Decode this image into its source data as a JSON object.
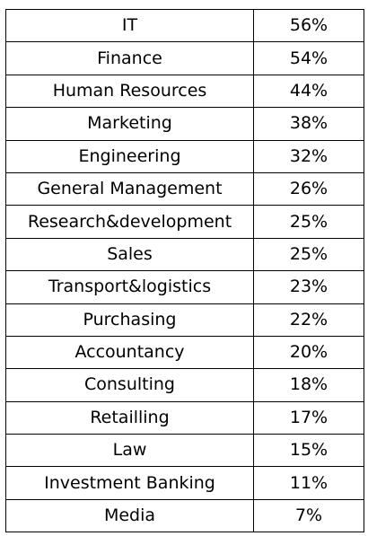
{
  "chart_data": {
    "type": "table",
    "title": "",
    "columns": [
      "",
      ""
    ],
    "categories": [
      "IT",
      "Finance",
      "Human Resources",
      "Marketing",
      "Engineering",
      "General Management",
      "Research&development",
      "Sales",
      "Transport&logistics",
      "Purchasing",
      "Accountancy",
      "Consulting",
      "Retailling",
      "Law",
      "Investment Banking",
      "Media"
    ],
    "values": [
      56,
      54,
      44,
      38,
      32,
      26,
      25,
      25,
      23,
      22,
      20,
      18,
      17,
      15,
      11,
      7
    ],
    "value_labels": [
      "56%",
      "54%",
      "44%",
      "38%",
      "32%",
      "26%",
      "25%",
      "25%",
      "23%",
      "22%",
      "20%",
      "18%",
      "17%",
      "15%",
      "11%",
      "7%"
    ],
    "unit": "%"
  },
  "colors": {
    "border": "#000000",
    "text": "#000000",
    "background": "#ffffff"
  }
}
